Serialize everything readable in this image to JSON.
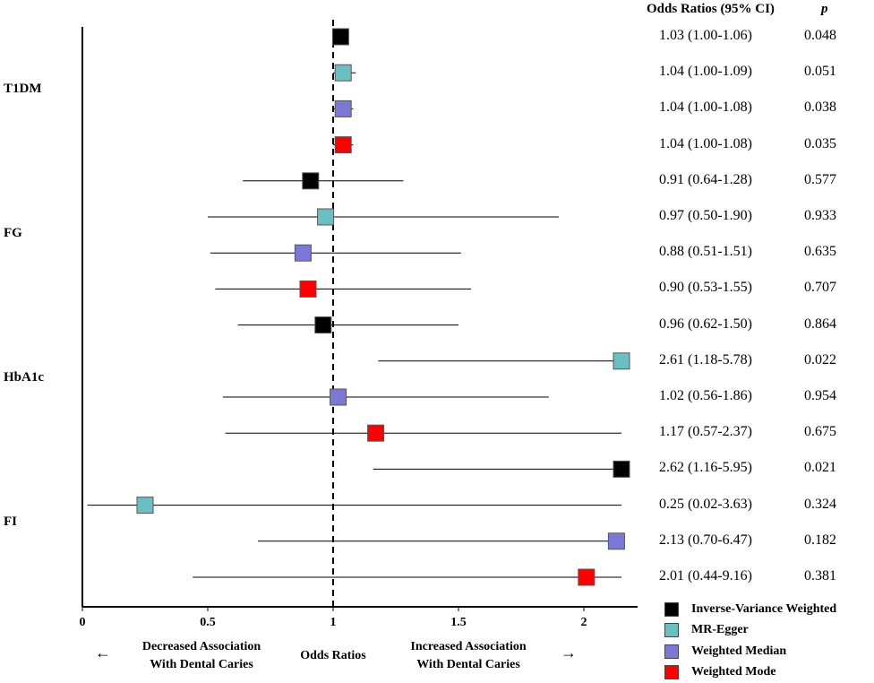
{
  "chart_data": {
    "type": "forest",
    "xlabel": "Odds Ratios",
    "xlim": [
      0,
      2.15
    ],
    "xticks": [
      "0",
      "0.5",
      "1",
      "1.5",
      "2"
    ],
    "xtick_values": [
      0,
      0.5,
      1,
      1.5,
      2
    ],
    "reference_line": 1,
    "headers": {
      "or": "Odds Ratios (95% CI)",
      "p": "p"
    },
    "groups": [
      {
        "label": "T1DM",
        "rows": [
          0,
          3
        ]
      },
      {
        "label": "FG",
        "rows": [
          4,
          7
        ]
      },
      {
        "label": "HbA1c",
        "rows": [
          8,
          11
        ]
      },
      {
        "label": "FI",
        "rows": [
          12,
          15
        ]
      }
    ],
    "methods": [
      {
        "name": "Inverse-Variance Weighted",
        "color": "#000000"
      },
      {
        "name": "MR-Egger",
        "color": "#6abfc2"
      },
      {
        "name": "Weighted Median",
        "color": "#7b79d6"
      },
      {
        "name": "Weighted Mode",
        "color": "#ff0000"
      }
    ],
    "rows": [
      {
        "method": 0,
        "or": 1.03,
        "lo": 1.0,
        "hi": 1.06,
        "or_text": "1.03 (1.00-1.06)",
        "p": "0.048"
      },
      {
        "method": 1,
        "or": 1.04,
        "lo": 1.0,
        "hi": 1.09,
        "or_text": "1.04 (1.00-1.09)",
        "p": "0.051"
      },
      {
        "method": 2,
        "or": 1.04,
        "lo": 1.0,
        "hi": 1.08,
        "or_text": "1.04 (1.00-1.08)",
        "p": "0.038"
      },
      {
        "method": 3,
        "or": 1.04,
        "lo": 1.0,
        "hi": 1.08,
        "or_text": "1.04 (1.00-1.08)",
        "p": "0.035"
      },
      {
        "method": 0,
        "or": 0.91,
        "lo": 0.64,
        "hi": 1.28,
        "or_text": "0.91 (0.64-1.28)",
        "p": "0.577"
      },
      {
        "method": 1,
        "or": 0.97,
        "lo": 0.5,
        "hi": 1.9,
        "or_text": "0.97 (0.50-1.90)",
        "p": "0.933"
      },
      {
        "method": 2,
        "or": 0.88,
        "lo": 0.51,
        "hi": 1.51,
        "or_text": "0.88 (0.51-1.51)",
        "p": "0.635"
      },
      {
        "method": 3,
        "or": 0.9,
        "lo": 0.53,
        "hi": 1.55,
        "or_text": "0.90 (0.53-1.55)",
        "p": "0.707"
      },
      {
        "method": 0,
        "or": 0.96,
        "lo": 0.62,
        "hi": 1.5,
        "or_text": "0.96 (0.62-1.50)",
        "p": "0.864"
      },
      {
        "method": 1,
        "or": 2.61,
        "lo": 1.18,
        "hi": 5.78,
        "or_text": "2.61 (1.18-5.78)",
        "p": "0.022"
      },
      {
        "method": 2,
        "or": 1.02,
        "lo": 0.56,
        "hi": 1.86,
        "or_text": "1.02 (0.56-1.86)",
        "p": "0.954"
      },
      {
        "method": 3,
        "or": 1.17,
        "lo": 0.57,
        "hi": 2.37,
        "or_text": "1.17 (0.57-2.37)",
        "p": "0.675"
      },
      {
        "method": 0,
        "or": 2.62,
        "lo": 1.16,
        "hi": 5.95,
        "or_text": "2.62 (1.16-5.95)",
        "p": "0.021"
      },
      {
        "method": 1,
        "or": 0.25,
        "lo": 0.02,
        "hi": 3.63,
        "or_text": "0.25 (0.02-3.63)",
        "p": "0.324"
      },
      {
        "method": 2,
        "or": 2.13,
        "lo": 0.7,
        "hi": 6.47,
        "or_text": "2.13 (0.70-6.47)",
        "p": "0.182"
      },
      {
        "method": 3,
        "or": 2.01,
        "lo": 0.44,
        "hi": 9.16,
        "or_text": "2.01 (0.44-9.16)",
        "p": "0.381"
      }
    ]
  },
  "annotations": {
    "left_arrow": "←",
    "right_arrow": "→",
    "decreased": "Decreased Association\nWith Dental Caries",
    "increased": "Increased Association\nWith Dental Caries",
    "xlabel": "Odds Ratios"
  }
}
